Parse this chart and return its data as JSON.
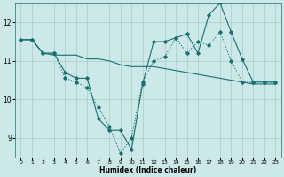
{
  "xlabel": "Humidex (Indice chaleur)",
  "background_color": "#cce8e8",
  "grid_color": "#aacccc",
  "line_color": "#1a7070",
  "xlim": [
    -0.5,
    23.5
  ],
  "ylim": [
    8.5,
    12.5
  ],
  "yticks": [
    9,
    10,
    11,
    12
  ],
  "line1_y": [
    11.55,
    11.55,
    11.2,
    11.2,
    10.7,
    10.55,
    10.55,
    9.5,
    9.2,
    9.2,
    8.7,
    10.4,
    11.5,
    11.5,
    11.6,
    11.7,
    11.2,
    12.2,
    12.5,
    11.75,
    11.05,
    10.45,
    10.45,
    10.45
  ],
  "line2_y": [
    11.55,
    11.55,
    11.2,
    11.2,
    10.55,
    10.45,
    10.3,
    9.8,
    9.3,
    8.6,
    9.0,
    10.45,
    11.0,
    11.1,
    11.6,
    11.2,
    11.5,
    11.4,
    11.75,
    11.0,
    10.45,
    10.45,
    10.45,
    10.45
  ],
  "line3_y": [
    11.55,
    11.55,
    11.2,
    11.15,
    11.15,
    11.15,
    11.05,
    11.05,
    11.0,
    10.9,
    10.85,
    10.85,
    10.85,
    10.8,
    10.75,
    10.7,
    10.65,
    10.6,
    10.55,
    10.5,
    10.45,
    10.4,
    10.4,
    10.4
  ]
}
